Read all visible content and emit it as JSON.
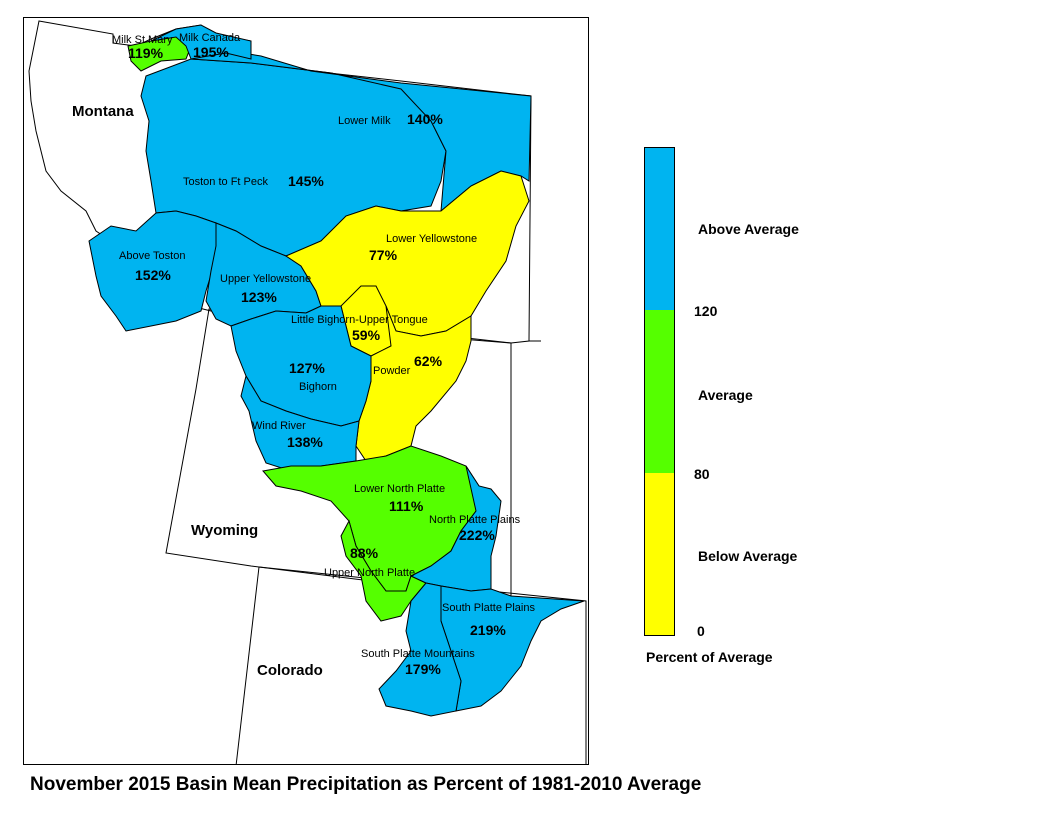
{
  "title": "November 2015 Basin Mean Precipitation as Percent of 1981-2010 Average",
  "colors": {
    "above": "#00b4f0",
    "average": "#55ff00",
    "below": "#ffff00",
    "outline": "#000000"
  },
  "states": [
    {
      "id": "montana",
      "label": "Montana"
    },
    {
      "id": "wyoming",
      "label": "Wyoming"
    },
    {
      "id": "colorado",
      "label": "Colorado"
    }
  ],
  "basins": [
    {
      "id": "milk-st-mary",
      "name": "Milk St Mary",
      "pct": "119%",
      "category": "average"
    },
    {
      "id": "milk-canada",
      "name": "Milk Canada",
      "pct": "195%",
      "category": "above"
    },
    {
      "id": "lower-milk",
      "name": "Lower Milk",
      "pct": "140%",
      "category": "above"
    },
    {
      "id": "toston-ft-peck",
      "name": "Toston to Ft Peck",
      "pct": "145%",
      "category": "above"
    },
    {
      "id": "above-toston",
      "name": "Above Toston",
      "pct": "152%",
      "category": "above"
    },
    {
      "id": "upper-yellowstone",
      "name": "Upper Yellowstone",
      "pct": "123%",
      "category": "above"
    },
    {
      "id": "lower-yellowstone",
      "name": "Lower Yellowstone",
      "pct": "77%",
      "category": "below"
    },
    {
      "id": "little-bighorn",
      "name": "Little Bighorn-Upper Tongue",
      "pct": "59%",
      "category": "below"
    },
    {
      "id": "powder",
      "name": "Powder",
      "pct": "62%",
      "category": "below"
    },
    {
      "id": "bighorn",
      "name": "Bighorn",
      "pct": "127%",
      "category": "above"
    },
    {
      "id": "wind-river",
      "name": "Wind River",
      "pct": "138%",
      "category": "above"
    },
    {
      "id": "lower-north-platte",
      "name": "Lower North Platte",
      "pct": "111%",
      "category": "average"
    },
    {
      "id": "north-platte-plains",
      "name": "North Platte Plains",
      "pct": "222%",
      "category": "above"
    },
    {
      "id": "upper-north-platte",
      "name": "Upper North Platte",
      "pct": "88%",
      "category": "average"
    },
    {
      "id": "south-platte-plains",
      "name": "South Platte Plains",
      "pct": "219%",
      "category": "above"
    },
    {
      "id": "south-platte-mountains",
      "name": "South Platte Mountains",
      "pct": "179%",
      "category": "above"
    }
  ],
  "legend": {
    "title": "Percent of Average",
    "classes": [
      {
        "label": "Above Average",
        "range": [
          120,
          null
        ],
        "color": "#00b4f0"
      },
      {
        "label": "Average",
        "range": [
          80,
          120
        ],
        "color": "#55ff00"
      },
      {
        "label": "Below Average",
        "range": [
          0,
          80
        ],
        "color": "#ffff00"
      }
    ],
    "ticks": [
      "120",
      "80",
      "0"
    ]
  }
}
